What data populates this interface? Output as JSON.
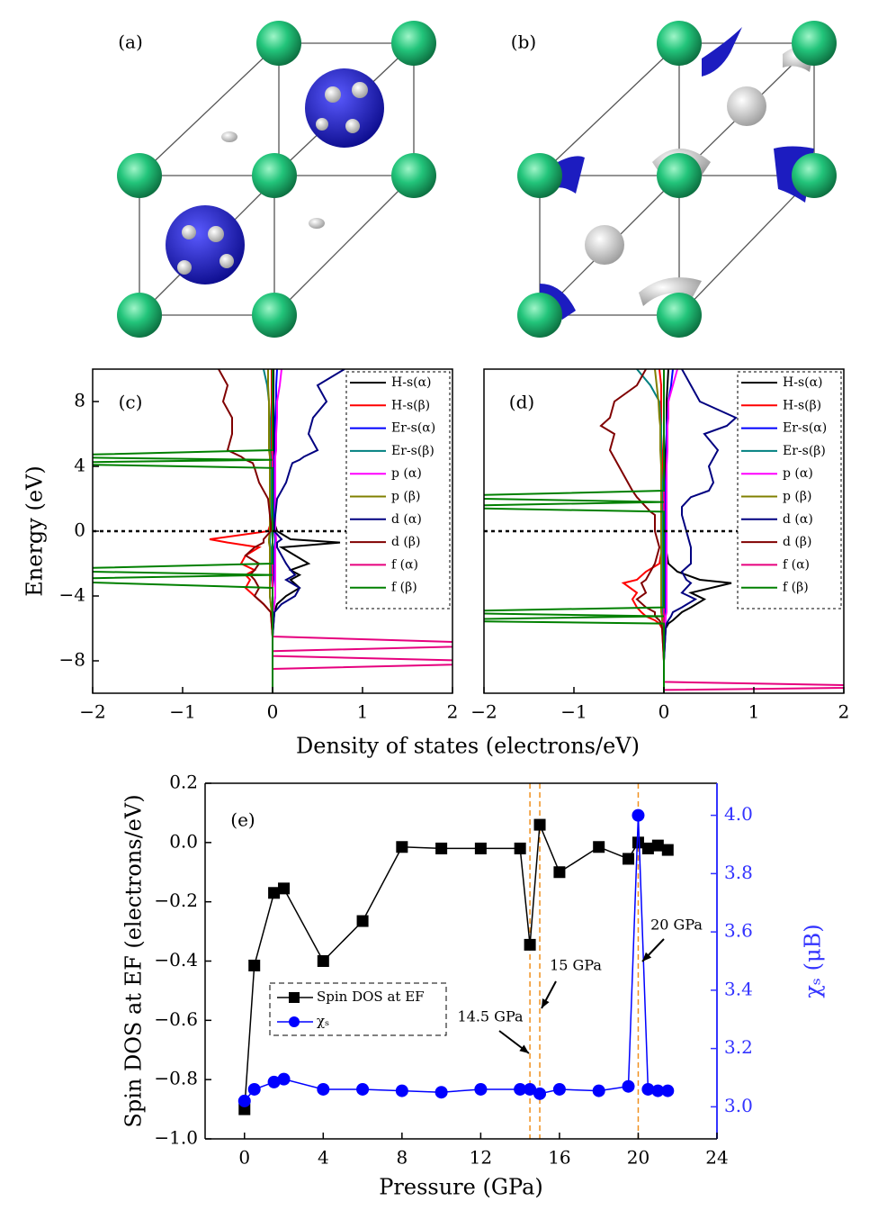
{
  "panels": {
    "a": "(a)",
    "b": "(b)"
  },
  "chart_data": [
    {
      "type": "line",
      "label": "(c)",
      "ylabel": "Energy (eV)",
      "xlabel": "Density of states (electrons/eV)",
      "xlim": [
        -2,
        2
      ],
      "ylim": [
        -10,
        10
      ],
      "xticks": [
        {
          "value": -2,
          "label": "−2"
        },
        {
          "value": -1,
          "label": "−1"
        },
        0,
        1,
        2
      ],
      "yticks": [
        {
          "value": -8,
          "label": "−8"
        },
        {
          "value": -4,
          "label": "−4"
        },
        0,
        4,
        8
      ],
      "legend": "upper right",
      "y": [
        -10,
        -8.5,
        -8.1,
        -7.7,
        -7.4,
        -7,
        -6.5,
        -5,
        -4.5,
        -4,
        -3.5,
        -3,
        -2.7,
        -2.4,
        -2,
        -1.5,
        -1,
        -0.7,
        -0.5,
        0,
        0.5,
        1,
        2,
        3,
        3.9,
        4.2,
        4.4,
        4.6,
        5,
        6,
        7,
        8,
        9,
        10
      ],
      "series": [
        {
          "name": "H-s(α)",
          "color": "#000000",
          "values": [
            0,
            0,
            0,
            0,
            0,
            0,
            0,
            0.02,
            0.05,
            0.15,
            0.3,
            0.2,
            0.3,
            0.2,
            0.4,
            0.25,
            0.1,
            0.75,
            0.2,
            0.05,
            0.02,
            0.01,
            0.01,
            0.01,
            0.01,
            0.01,
            0.01,
            0.01,
            0.01,
            0.01,
            0.01,
            0.01,
            0.01,
            0.01
          ]
        },
        {
          "name": "H-s(β)",
          "color": "#ff0000",
          "values": [
            0,
            0,
            0,
            0,
            0,
            0,
            0,
            -0.02,
            -0.1,
            -0.2,
            -0.3,
            -0.25,
            -0.3,
            -0.2,
            -0.35,
            -0.3,
            -0.15,
            -0.5,
            -0.7,
            -0.05,
            -0.02,
            -0.01,
            -0.01,
            -0.01,
            -0.01,
            -0.01,
            -0.01,
            -0.01,
            -0.01,
            -0.01,
            -0.01,
            -0.01,
            -0.01,
            -0.01
          ]
        },
        {
          "name": "Er-s(α)",
          "color": "#0000ff",
          "values": [
            0,
            0,
            0,
            0,
            0,
            0,
            0,
            0.01,
            0.02,
            0.03,
            0.03,
            0.02,
            0.02,
            0.02,
            0.02,
            0.02,
            0.02,
            0.03,
            0.03,
            0.02,
            0.02,
            0.02,
            0.02,
            0.02,
            0.02,
            0.02,
            0.02,
            0.02,
            0.03,
            0.03,
            0.03,
            0.04,
            0.04,
            0.05
          ]
        },
        {
          "name": "Er-s(β)",
          "color": "#008080",
          "values": [
            0,
            0,
            0,
            0,
            0,
            0,
            0,
            -0.01,
            -0.02,
            -0.03,
            -0.03,
            -0.02,
            -0.02,
            -0.02,
            -0.02,
            -0.02,
            -0.02,
            -0.03,
            -0.03,
            -0.02,
            -0.02,
            -0.02,
            -0.02,
            -0.02,
            -0.02,
            -0.02,
            -0.02,
            -0.02,
            -0.03,
            -0.03,
            -0.03,
            -0.04,
            -0.06,
            -0.1
          ]
        },
        {
          "name": "p (α)",
          "color": "#ff00ff",
          "values": [
            0,
            0,
            0,
            0,
            0,
            0,
            0,
            0.01,
            0.02,
            0.03,
            0.03,
            0.03,
            0.03,
            0.03,
            0.03,
            0.03,
            0.03,
            0.04,
            0.04,
            0.03,
            0.03,
            0.03,
            0.03,
            0.03,
            0.03,
            0.03,
            0.03,
            0.03,
            0.04,
            0.04,
            0.05,
            0.05,
            0.08,
            0.1
          ]
        },
        {
          "name": "p (β)",
          "color": "#808000",
          "values": [
            0,
            0,
            0,
            0,
            0,
            0,
            0,
            -0.01,
            -0.02,
            -0.03,
            -0.03,
            -0.03,
            -0.03,
            -0.03,
            -0.03,
            -0.03,
            -0.03,
            -0.04,
            -0.04,
            -0.03,
            -0.03,
            -0.03,
            -0.03,
            -0.03,
            -0.03,
            -0.03,
            -0.03,
            -0.03,
            -0.04,
            -0.04,
            -0.04,
            -0.04,
            -0.05,
            -0.05
          ]
        },
        {
          "name": "d (α)",
          "color": "#000080",
          "values": [
            0,
            0,
            0,
            0,
            0,
            0,
            0,
            0.02,
            0.1,
            0.25,
            0.3,
            0.15,
            0.25,
            0.2,
            0.15,
            0.1,
            0.05,
            0.05,
            0.1,
            0.02,
            0.02,
            0.03,
            0.05,
            0.15,
            0.2,
            0.22,
            0.3,
            0.35,
            0.5,
            0.4,
            0.45,
            0.6,
            0.5,
            0.8
          ]
        },
        {
          "name": "d (β)",
          "color": "#800000",
          "values": [
            0,
            0,
            0,
            0,
            0,
            0,
            0,
            -0.02,
            -0.1,
            -0.2,
            -0.15,
            -0.2,
            -0.25,
            -0.2,
            -0.15,
            -0.3,
            -0.2,
            -0.1,
            -0.1,
            -0.02,
            -0.02,
            -0.03,
            -0.05,
            -0.15,
            -0.2,
            -0.22,
            -0.3,
            -0.35,
            -0.5,
            -0.45,
            -0.45,
            -0.55,
            -0.5,
            -0.6
          ]
        },
        {
          "name": "f (α)",
          "color": "#e6007e",
          "values": [
            0,
            0,
            3,
            0,
            0,
            3,
            0,
            0,
            0,
            0,
            0,
            0,
            0,
            0,
            0,
            0,
            0,
            0,
            0,
            0,
            0,
            0,
            0,
            0,
            0,
            0,
            0,
            0,
            0,
            0,
            0,
            0,
            0,
            0
          ]
        },
        {
          "name": "f (β)",
          "color": "#008000",
          "values": [
            0,
            0,
            0,
            0,
            0,
            0,
            0,
            0,
            0,
            0,
            0,
            -3,
            0,
            -3,
            0,
            0,
            0,
            0,
            0,
            0,
            0,
            0,
            0,
            0,
            0,
            -3,
            0,
            -3,
            0,
            0,
            0,
            0,
            0,
            0
          ]
        }
      ]
    },
    {
      "type": "line",
      "label": "(d)",
      "xlim": [
        -2,
        2
      ],
      "ylim": [
        -10,
        10
      ],
      "xticks": [
        {
          "value": -2,
          "label": "−2"
        },
        {
          "value": -1,
          "label": "−1"
        },
        0,
        1,
        2
      ],
      "legend": "upper right",
      "y": [
        -10,
        -9.8,
        -9.6,
        -9.3,
        -8,
        -6,
        -5.7,
        -5.5,
        -5.25,
        -5,
        -4.7,
        -4.2,
        -3.8,
        -3.2,
        -3,
        -2.5,
        -2,
        -1,
        0,
        1,
        1.2,
        1.5,
        1.8,
        2.1,
        2.5,
        3,
        4,
        5,
        6,
        6.5,
        7,
        8,
        9,
        10
      ],
      "series": [
        {
          "name": "H-s(α)",
          "color": "#000000",
          "values": [
            0,
            0,
            0,
            0,
            0,
            0.02,
            0.05,
            0.1,
            0.15,
            0.2,
            0.3,
            0.45,
            0.3,
            0.75,
            0.4,
            0.15,
            0.05,
            0.02,
            0.02,
            0.02,
            0.02,
            0.02,
            0.02,
            0.02,
            0.02,
            0.02,
            0.02,
            0.02,
            0.03,
            0.03,
            0.03,
            0.03,
            0.04,
            0.05
          ]
        },
        {
          "name": "H-s(β)",
          "color": "#ff0000",
          "values": [
            0,
            0,
            0,
            0,
            0,
            -0.02,
            -0.05,
            -0.1,
            -0.2,
            -0.25,
            -0.3,
            -0.35,
            -0.3,
            -0.45,
            -0.3,
            -0.2,
            -0.05,
            -0.02,
            -0.02,
            -0.02,
            -0.02,
            -0.02,
            -0.02,
            -0.02,
            -0.02,
            -0.02,
            -0.02,
            -0.02,
            -0.03,
            -0.03,
            -0.03,
            -0.03,
            -0.03,
            -0.05
          ]
        },
        {
          "name": "Er-s(α)",
          "color": "#0000ff",
          "values": [
            0,
            0,
            0,
            0,
            0,
            0.01,
            0.01,
            0.02,
            0.02,
            0.02,
            0.02,
            0.02,
            0.02,
            0.02,
            0.02,
            0.02,
            0.02,
            0.02,
            0.02,
            0.02,
            0.02,
            0.02,
            0.02,
            0.02,
            0.02,
            0.02,
            0.03,
            0.03,
            0.03,
            0.03,
            0.04,
            0.05,
            0.08,
            0.1
          ]
        },
        {
          "name": "Er-s(β)",
          "color": "#008080",
          "values": [
            0,
            0,
            0,
            0,
            0,
            -0.01,
            -0.01,
            -0.02,
            -0.02,
            -0.02,
            -0.02,
            -0.02,
            -0.02,
            -0.02,
            -0.02,
            -0.02,
            -0.02,
            -0.02,
            -0.02,
            -0.02,
            -0.02,
            -0.02,
            -0.02,
            -0.02,
            -0.02,
            -0.02,
            -0.03,
            -0.03,
            -0.03,
            -0.03,
            -0.04,
            -0.05,
            -0.15,
            -0.3
          ]
        },
        {
          "name": "p (α)",
          "color": "#ff00ff",
          "values": [
            0,
            0,
            0,
            0,
            0,
            0.01,
            0.01,
            0.02,
            0.02,
            0.03,
            0.03,
            0.03,
            0.03,
            0.03,
            0.03,
            0.03,
            0.03,
            0.03,
            0.03,
            0.03,
            0.03,
            0.03,
            0.03,
            0.03,
            0.03,
            0.03,
            0.03,
            0.04,
            0.04,
            0.04,
            0.05,
            0.05,
            0.1,
            0.15
          ]
        },
        {
          "name": "p (β)",
          "color": "#808000",
          "values": [
            0,
            0,
            0,
            0,
            0,
            -0.01,
            -0.01,
            -0.02,
            -0.02,
            -0.03,
            -0.03,
            -0.03,
            -0.03,
            -0.03,
            -0.03,
            -0.03,
            -0.03,
            -0.03,
            -0.03,
            -0.03,
            -0.03,
            -0.03,
            -0.03,
            -0.03,
            -0.03,
            -0.03,
            -0.03,
            -0.04,
            -0.04,
            -0.04,
            -0.05,
            -0.06,
            -0.08,
            -0.1
          ]
        },
        {
          "name": "d (α)",
          "color": "#000080",
          "values": [
            0,
            0,
            0,
            0,
            0,
            0.02,
            0.03,
            0.05,
            0.08,
            0.1,
            0.2,
            0.35,
            0.2,
            0.3,
            0.25,
            0.2,
            0.3,
            0.3,
            0.25,
            0.2,
            0.2,
            0.2,
            0.25,
            0.3,
            0.5,
            0.55,
            0.5,
            0.6,
            0.45,
            0.7,
            0.8,
            0.4,
            0.3,
            0.2
          ]
        },
        {
          "name": "d (β)",
          "color": "#800000",
          "values": [
            0,
            0,
            0,
            0,
            0,
            -0.02,
            -0.03,
            -0.05,
            -0.1,
            -0.1,
            -0.2,
            -0.3,
            -0.2,
            -0.25,
            -0.2,
            -0.15,
            -0.1,
            -0.05,
            -0.1,
            -0.1,
            -0.15,
            -0.2,
            -0.25,
            -0.3,
            -0.35,
            -0.4,
            -0.5,
            -0.6,
            -0.55,
            -0.7,
            -0.6,
            -0.55,
            -0.3,
            -0.2
          ]
        },
        {
          "name": "f (α)",
          "color": "#e6007e",
          "values": [
            0,
            0,
            3,
            0,
            0,
            0,
            0,
            0,
            0,
            0,
            0,
            0,
            0,
            0,
            0,
            0,
            0,
            0,
            0,
            0,
            0,
            0,
            0,
            0,
            0,
            0,
            0,
            0,
            0,
            0,
            0,
            0,
            0,
            0
          ]
        },
        {
          "name": "f (β)",
          "color": "#008000",
          "values": [
            0,
            0,
            0,
            0,
            0,
            0,
            0,
            -3,
            0,
            -3,
            0,
            0,
            0,
            0,
            0,
            0,
            0,
            0,
            0,
            0,
            0,
            -3,
            0,
            -3,
            0,
            0,
            0,
            0,
            0,
            0,
            0,
            0,
            0,
            0
          ]
        }
      ]
    },
    {
      "type": "scatter-line",
      "label": "(e)",
      "xlabel": "Pressure (GPa)",
      "ylabel": "Spin DOS at EF (electrons/eV)",
      "y2label": "χₛ (μB)",
      "xlim": [
        -2,
        24
      ],
      "ylim": [
        -1.0,
        0.2
      ],
      "y2lim": [
        2.89,
        4.11
      ],
      "xticks": [
        0,
        4,
        8,
        12,
        16,
        20,
        24
      ],
      "yticks": [
        {
          "value": -1.0,
          "label": "−1.0"
        },
        {
          "value": -0.8,
          "label": "−0.8"
        },
        {
          "value": -0.6,
          "label": "−0.6"
        },
        {
          "value": -0.4,
          "label": "−0.4"
        },
        {
          "value": -0.2,
          "label": "−0.2"
        },
        {
          "value": 0,
          "label": "0.0"
        },
        0.2
      ],
      "y2ticks": [
        {
          "value": 3,
          "label": "3.0"
        },
        3.2,
        3.4,
        3.6,
        3.8,
        {
          "value": 4,
          "label": "4.0"
        }
      ],
      "y2color": "#3333ff",
      "x": [
        0,
        0.5,
        1.5,
        2,
        4,
        6,
        8,
        10,
        12,
        14,
        14.5,
        15,
        16,
        18,
        19.5,
        20,
        20.5,
        21,
        21.5
      ],
      "vlines": [
        14.5,
        15,
        20
      ],
      "annotations": [
        "14.5 GPa",
        "15 GPa",
        "20 GPa"
      ],
      "series": [
        {
          "name": "Spin DOS at EF",
          "color": "#000000",
          "marker": "square",
          "axis": "y",
          "values": [
            -0.9,
            -0.415,
            -0.17,
            -0.155,
            -0.4,
            -0.265,
            -0.015,
            -0.02,
            -0.02,
            -0.02,
            -0.345,
            0.06,
            -0.1,
            -0.015,
            -0.055,
            0.0,
            -0.02,
            -0.01,
            -0.025
          ]
        },
        {
          "name": "χₛ",
          "color": "#0000ff",
          "marker": "circle",
          "axis": "y2",
          "values": [
            3.02,
            3.06,
            3.085,
            3.095,
            3.06,
            3.06,
            3.055,
            3.05,
            3.06,
            3.06,
            3.06,
            3.045,
            3.06,
            3.055,
            3.07,
            4.0,
            3.06,
            3.055,
            3.055
          ]
        }
      ]
    }
  ]
}
